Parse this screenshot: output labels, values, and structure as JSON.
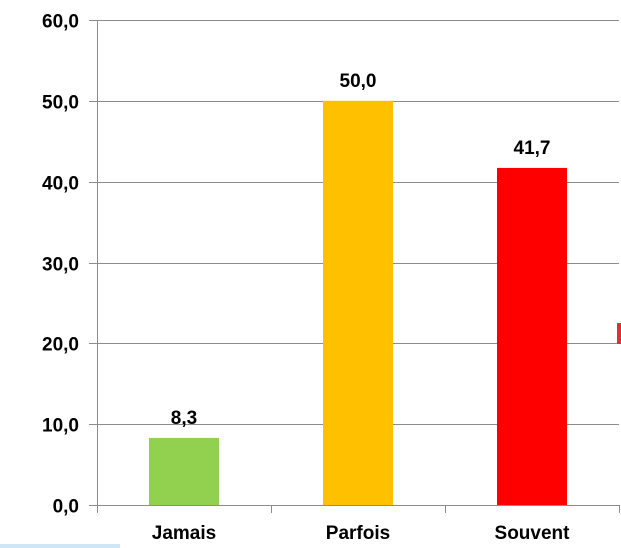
{
  "chart_data": {
    "type": "bar",
    "categories": [
      "Jamais",
      "Parfois",
      "Souvent"
    ],
    "values": [
      8.3,
      50.0,
      41.7
    ],
    "value_labels": [
      "8,3",
      "50,0",
      "41,7"
    ],
    "colors": [
      "#92d050",
      "#ffc000",
      "#ff0000"
    ],
    "ylim": [
      0,
      60
    ],
    "y_ticks": [
      0,
      10,
      20,
      30,
      40,
      50,
      60
    ],
    "y_tick_labels": [
      "0,0",
      "10,0",
      "20,0",
      "30,0",
      "40,0",
      "50,0",
      "60,0"
    ],
    "grid": true,
    "legend": "none"
  }
}
